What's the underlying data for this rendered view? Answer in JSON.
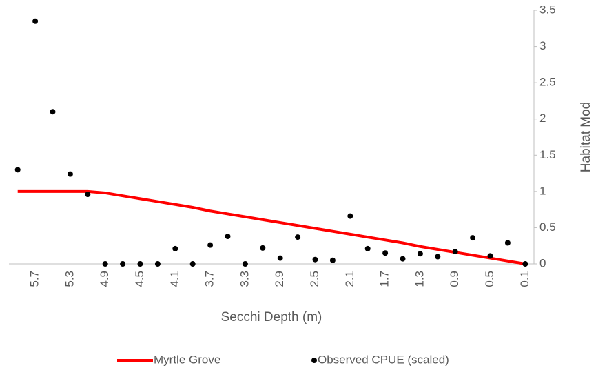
{
  "chart_data": {
    "type": "combo",
    "x_label": "Secchi Depth (m)",
    "y_label": "Habitat Mod",
    "x": [
      5.9,
      5.7,
      5.5,
      5.3,
      5.1,
      4.9,
      4.7,
      4.5,
      4.3,
      4.1,
      3.9,
      3.7,
      3.5,
      3.3,
      3.1,
      2.9,
      2.7,
      2.5,
      2.3,
      2.1,
      1.9,
      1.7,
      1.5,
      1.3,
      1.1,
      0.9,
      0.7,
      0.5,
      0.3,
      0.1
    ],
    "xlim": [
      6.0,
      0.0
    ],
    "xticks": [
      5.7,
      5.3,
      4.9,
      4.5,
      4.1,
      3.7,
      3.3,
      2.9,
      2.5,
      2.1,
      1.7,
      1.3,
      0.9,
      0.5,
      0.1
    ],
    "ylim": [
      0,
      3.5
    ],
    "yticks": [
      0,
      0.5,
      1,
      1.5,
      2,
      2.5,
      3,
      3.5
    ],
    "y_axis_side": "right",
    "grid": false,
    "legend": "bottom",
    "series": [
      {
        "name": "Myrtle Grove",
        "type": "line",
        "color": "#ff0000",
        "values": [
          1,
          1,
          1,
          1,
          1,
          0.98,
          0.94,
          0.9,
          0.86,
          0.82,
          0.78,
          0.73,
          0.69,
          0.65,
          0.61,
          0.57,
          0.53,
          0.49,
          0.45,
          0.41,
          0.37,
          0.33,
          0.29,
          0.24,
          0.2,
          0.16,
          0.12,
          0.08,
          0.04,
          0
        ]
      },
      {
        "name": "Observed CPUE (scaled)",
        "type": "scatter",
        "color": "#000000",
        "values": [
          1.3,
          3.35,
          2.1,
          1.24,
          0.96,
          0,
          0,
          0,
          0,
          0.21,
          0,
          0.26,
          0.38,
          0,
          0.22,
          0.08,
          0.37,
          0.06,
          0.05,
          0.66,
          0.21,
          0.15,
          0.07,
          0.14,
          0.1,
          0.17,
          0.36,
          0.11,
          0.29,
          0
        ]
      }
    ]
  }
}
